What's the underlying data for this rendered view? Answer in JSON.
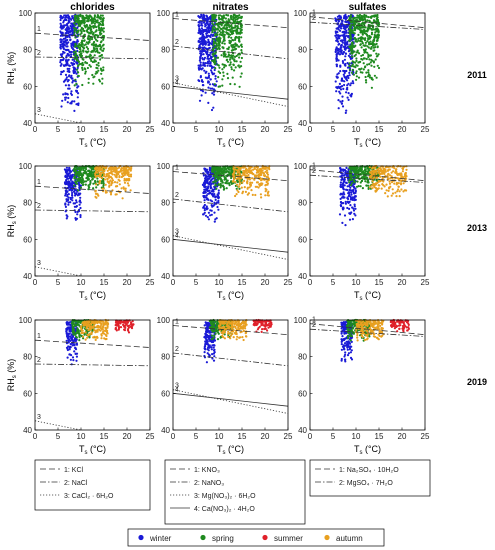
{
  "chart_data": {
    "type": "scatter",
    "layout": "3x3 grid of scatter panels with deliquescence-humidity curves",
    "columns": [
      "chlorides",
      "nitrates",
      "sulfates"
    ],
    "rows": [
      "2011",
      "2013",
      "2019"
    ],
    "xlabel": {
      "main": "T",
      "sub": "s",
      "unit": " (°C)"
    },
    "ylabel": {
      "main": "RH",
      "sub": "s",
      "unit": " (%)"
    },
    "xlim": [
      0,
      25
    ],
    "ylim": [
      40,
      100
    ],
    "xticks": [
      "0",
      "5",
      "10",
      "15",
      "20",
      "25"
    ],
    "yticks": [
      "40",
      "60",
      "80",
      "100"
    ],
    "grid": false,
    "season_colors": {
      "winter": "#1a1ad6",
      "spring": "#1f8a1f",
      "summer": "#e0202a",
      "autumn": "#e8a020"
    },
    "season_legend": [
      "winter",
      "spring",
      "summer",
      "autumn"
    ],
    "salt_curves": {
      "chlorides": [
        {
          "label": "1",
          "style": "dashed",
          "points": [
            [
              0,
              89
            ],
            [
              25,
              85
            ]
          ]
        },
        {
          "label": "2",
          "style": "dashdot",
          "points": [
            [
              0,
              76
            ],
            [
              25,
              75
            ]
          ]
        },
        {
          "label": "3",
          "style": "dotted",
          "points": [
            [
              0,
              45
            ],
            [
              7,
              41.5
            ],
            [
              10,
              40
            ]
          ]
        }
      ],
      "nitrates": [
        {
          "label": "1",
          "style": "dashed",
          "points": [
            [
              0,
              97
            ],
            [
              25,
              92
            ]
          ]
        },
        {
          "label": "2",
          "style": "dashdot",
          "points": [
            [
              0,
              82
            ],
            [
              25,
              75
            ]
          ]
        },
        {
          "label": "3",
          "style": "dotted",
          "points": [
            [
              0,
              62
            ],
            [
              25,
              49
            ]
          ]
        },
        {
          "label": "4",
          "style": "solid",
          "points": [
            [
              0,
              60
            ],
            [
              25,
              53
            ]
          ]
        }
      ],
      "sulfates": [
        {
          "label": "1",
          "style": "dashed",
          "points": [
            [
              0,
              98
            ],
            [
              25,
              92
            ]
          ]
        },
        {
          "label": "2",
          "style": "dashdot",
          "points": [
            [
              0,
              95
            ],
            [
              25,
              91
            ]
          ]
        }
      ]
    },
    "season_clusters": {
      "2011": [
        {
          "season": "winter",
          "x": [
            5.5,
            9.5
          ],
          "y": [
            44,
            99
          ],
          "n": 380
        },
        {
          "season": "spring",
          "x": [
            8.5,
            15
          ],
          "y": [
            58,
            99
          ],
          "n": 420
        }
      ],
      "2013": [
        {
          "season": "winter",
          "x": [
            6.5,
            10
          ],
          "y": [
            67,
            99
          ],
          "n": 220
        },
        {
          "season": "spring",
          "x": [
            8.5,
            15
          ],
          "y": [
            86,
            100
          ],
          "n": 260
        },
        {
          "season": "autumn",
          "x": [
            13,
            21
          ],
          "y": [
            82,
            100
          ],
          "n": 240
        }
      ],
      "2019": [
        {
          "season": "winter",
          "x": [
            6.8,
            9.2
          ],
          "y": [
            75,
            99
          ],
          "n": 160
        },
        {
          "season": "spring",
          "x": [
            8,
            13
          ],
          "y": [
            88,
            100
          ],
          "n": 160
        },
        {
          "season": "autumn",
          "x": [
            10,
            16
          ],
          "y": [
            88,
            100
          ],
          "n": 180
        },
        {
          "season": "summer",
          "x": [
            17.5,
            21.5
          ],
          "y": [
            93,
            100
          ],
          "n": 80
        }
      ]
    },
    "legends": {
      "chlorides": [
        {
          "style": "dashed",
          "text": "1: KCl"
        },
        {
          "style": "dashdot",
          "text": "2: NaCl"
        },
        {
          "style": "dotted",
          "text": "3: CaCl₂ · 6H₂O"
        }
      ],
      "nitrates": [
        {
          "style": "dashed",
          "text": "1: KNO₃"
        },
        {
          "style": "dashdot",
          "text": "2: NaNO₃"
        },
        {
          "style": "dotted",
          "text": "3: Mg(NO₃)₂ · 6H₂O"
        },
        {
          "style": "solid",
          "text": "4: Ca(NO₃)₂ · 4H₂O"
        }
      ],
      "sulfates": [
        {
          "style": "dashed",
          "text": "1: Na₂SO₄ · 10H₂O"
        },
        {
          "style": "dashdot",
          "text": "2: MgSO₄ · 7H₂O"
        }
      ]
    }
  }
}
